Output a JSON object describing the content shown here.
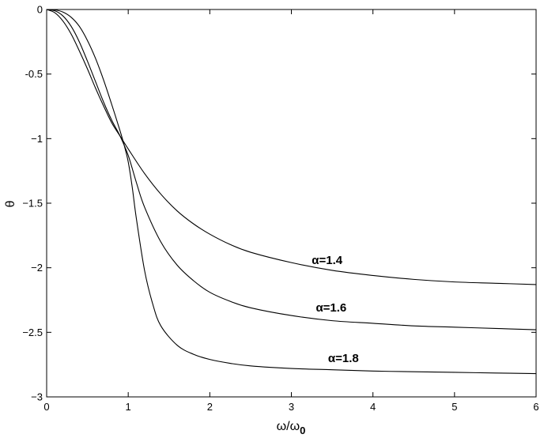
{
  "chart_data": {
    "type": "line",
    "title": "",
    "xlabel": "ω/ω",
    "xlabel_subscript": "0",
    "ylabel": "θ",
    "xlim": [
      0,
      6
    ],
    "ylim": [
      -3,
      0
    ],
    "xticks": [
      0,
      1,
      2,
      3,
      4,
      5,
      6
    ],
    "xtick_labels": [
      "0",
      "1",
      "2",
      "3",
      "4",
      "5",
      "6"
    ],
    "yticks": [
      0,
      -0.5,
      -1,
      -1.5,
      -2,
      -2.5,
      -3
    ],
    "ytick_labels": [
      "0",
      "-0.5",
      "−1",
      "−1.5",
      "−2",
      "−2.5",
      "−3"
    ],
    "grid": false,
    "series": [
      {
        "alpha": 1.4,
        "annotation": "α=1.4",
        "label_at": [
          3.25,
          -1.97
        ],
        "x": [
          0,
          0.1,
          0.2,
          0.3,
          0.4,
          0.5,
          0.6,
          0.7,
          0.8,
          0.9,
          1.0,
          1.2,
          1.4,
          1.6,
          1.8,
          2.0,
          2.25,
          2.5,
          3.0,
          3.5,
          4.0,
          4.5,
          5.0,
          5.5,
          6.0
        ],
        "y": [
          0,
          -0.025,
          -0.09,
          -0.19,
          -0.32,
          -0.46,
          -0.61,
          -0.75,
          -0.88,
          -0.98,
          -1.08,
          -1.27,
          -1.43,
          -1.56,
          -1.66,
          -1.74,
          -1.82,
          -1.88,
          -1.96,
          -2.02,
          -2.06,
          -2.09,
          -2.11,
          -2.12,
          -2.13
        ]
      },
      {
        "alpha": 1.6,
        "annotation": "α=1.6",
        "label_at": [
          3.3,
          -2.34
        ],
        "x": [
          0,
          0.1,
          0.2,
          0.3,
          0.4,
          0.5,
          0.6,
          0.7,
          0.8,
          0.9,
          1.0,
          1.1,
          1.2,
          1.4,
          1.6,
          1.8,
          2.0,
          2.25,
          2.5,
          3.0,
          3.5,
          4.0,
          4.5,
          5.0,
          5.5,
          6.0
        ],
        "y": [
          0,
          -0.01,
          -0.05,
          -0.13,
          -0.25,
          -0.4,
          -0.56,
          -0.72,
          -0.86,
          -0.98,
          -1.13,
          -1.34,
          -1.53,
          -1.8,
          -1.98,
          -2.1,
          -2.19,
          -2.26,
          -2.31,
          -2.37,
          -2.41,
          -2.43,
          -2.45,
          -2.46,
          -2.47,
          -2.48
        ]
      },
      {
        "alpha": 1.8,
        "annotation": "α=1.8",
        "label_at": [
          3.45,
          -2.73
        ],
        "x": [
          0,
          0.1,
          0.2,
          0.3,
          0.4,
          0.5,
          0.6,
          0.7,
          0.8,
          0.9,
          0.95,
          1.0,
          1.05,
          1.1,
          1.2,
          1.3,
          1.4,
          1.6,
          1.8,
          2.0,
          2.25,
          2.5,
          3.0,
          3.5,
          4.0,
          4.5,
          5.0,
          5.5,
          6.0
        ],
        "y": [
          0,
          -0.003,
          -0.02,
          -0.06,
          -0.13,
          -0.24,
          -0.38,
          -0.55,
          -0.74,
          -0.94,
          -1.05,
          -1.18,
          -1.38,
          -1.62,
          -2.02,
          -2.28,
          -2.45,
          -2.6,
          -2.67,
          -2.71,
          -2.74,
          -2.76,
          -2.78,
          -2.79,
          -2.8,
          -2.805,
          -2.81,
          -2.815,
          -2.82
        ]
      }
    ]
  }
}
